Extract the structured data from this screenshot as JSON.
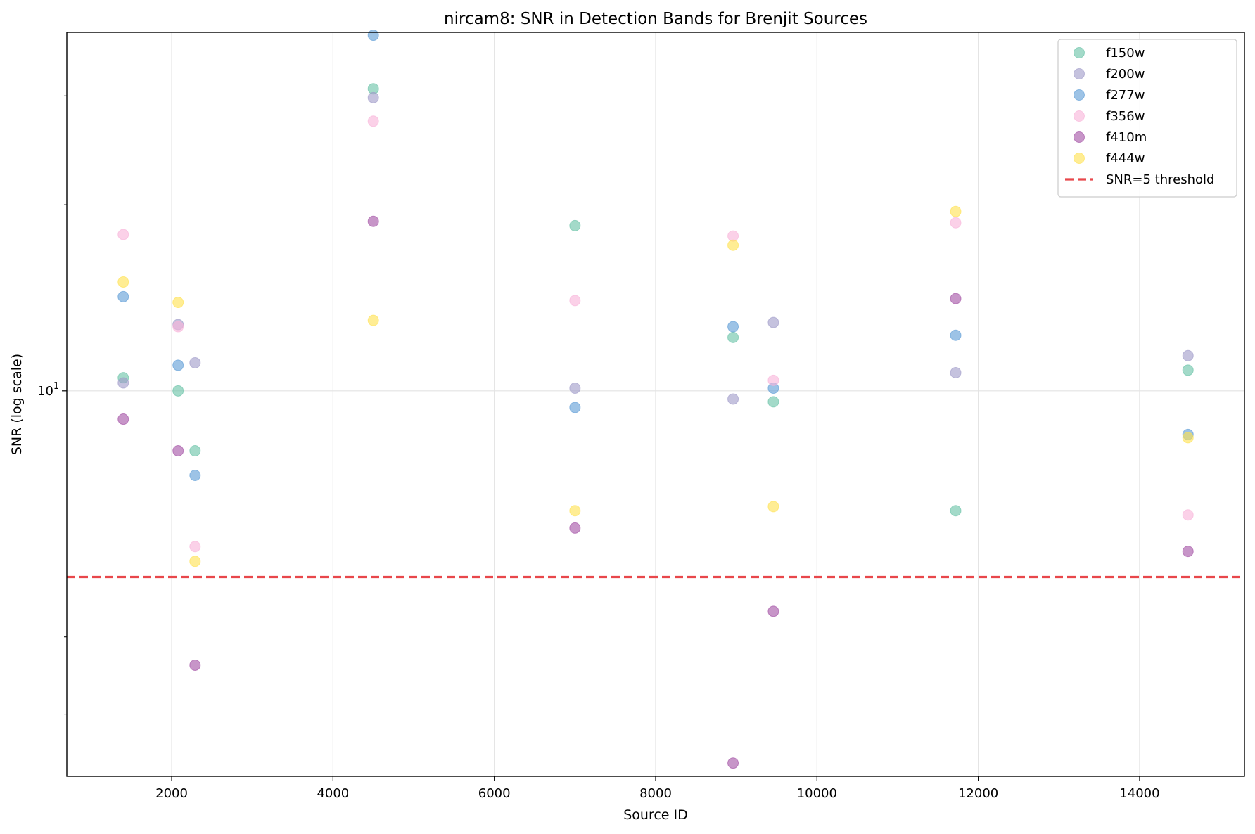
{
  "chart_data": {
    "type": "scatter",
    "title": "nircam8: SNR in Detection Bands for Brenjit Sources",
    "xlabel": "Source ID",
    "ylabel": "SNR (log scale)",
    "xlim": [
      700,
      15300
    ],
    "ylim": [
      2.38,
      38.0
    ],
    "yscale": "log",
    "xticks": [
      2000,
      4000,
      6000,
      8000,
      10000,
      12000,
      14000
    ],
    "yticks_major": [
      {
        "value": 10,
        "base": "10",
        "exp": "1"
      }
    ],
    "yticks_minor": [
      3,
      4,
      20,
      30
    ],
    "grid": true,
    "legend_position": "top-right",
    "threshold": {
      "value": 5,
      "label": "SNR=5 threshold",
      "color": "#e8474b"
    },
    "x": [
      1400,
      2080,
      2290,
      4500,
      7000,
      8960,
      9460,
      11720,
      14600
    ],
    "series": [
      {
        "name": "f150w",
        "color": "#66c2a5",
        "values": [
          10.5,
          10.0,
          8.0,
          30.8,
          18.5,
          12.2,
          9.6,
          6.4,
          10.8
        ]
      },
      {
        "name": "f200w",
        "color": "#9e9ac8",
        "values": [
          10.3,
          12.8,
          11.1,
          29.8,
          10.1,
          9.7,
          12.9,
          10.7,
          11.4
        ]
      },
      {
        "name": "f277w",
        "color": "#5b9bd5",
        "values": [
          14.2,
          11.0,
          7.3,
          37.6,
          9.4,
          12.7,
          10.1,
          12.3,
          8.5
        ]
      },
      {
        "name": "f356w",
        "color": "#f9b3d9",
        "values": [
          17.9,
          12.7,
          5.6,
          27.3,
          14.0,
          17.8,
          10.4,
          18.7,
          6.3
        ]
      },
      {
        "name": "f410m",
        "color": "#a24ea3",
        "values": [
          9.0,
          8.0,
          3.6,
          18.8,
          6.0,
          2.5,
          4.4,
          14.1,
          5.5
        ]
      },
      {
        "name": "f444w",
        "color": "#ffe14d",
        "values": [
          15.0,
          13.9,
          5.3,
          13.0,
          6.4,
          17.2,
          6.5,
          19.5,
          8.4
        ]
      }
    ]
  }
}
